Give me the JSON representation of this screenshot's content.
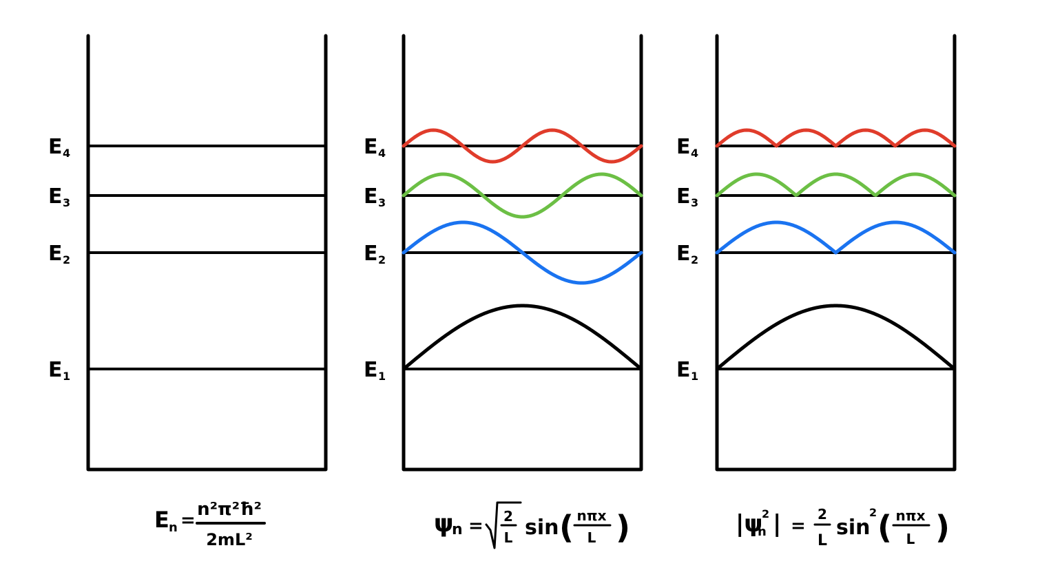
{
  "levels": [
    {
      "main": "E",
      "sub": "1",
      "n": 1
    },
    {
      "main": "E",
      "sub": "2",
      "n": 2
    },
    {
      "main": "E",
      "sub": "3",
      "n": 3
    },
    {
      "main": "E",
      "sub": "4",
      "n": 4
    }
  ],
  "colors": {
    "n1": "#000000",
    "n2": "#1a73f0",
    "n3": "#6cbf45",
    "n4": "#e03c2b"
  },
  "equations": {
    "energy": {
      "lhs": "E",
      "lhs_sub": "n",
      "equals": "=",
      "numerator": "n²π²ħ²",
      "denominator": "2mL²"
    },
    "wavefunction": {
      "lhs": "ψ",
      "lhs_sub": "n",
      "equals": "=",
      "sqrt_num": "2",
      "sqrt_den": "L",
      "func": "sin",
      "arg_num": "nπx",
      "arg_den": "L"
    },
    "probability": {
      "lhs": "|ψ",
      "lhs_sub": "n",
      "lhs_sup": "2",
      "lhs_end": "|",
      "equals": "=",
      "coef_num": "2",
      "coef_den": "L",
      "func": "sin",
      "func_sup": "2",
      "arg_num": "nπx",
      "arg_den": "L"
    }
  }
}
